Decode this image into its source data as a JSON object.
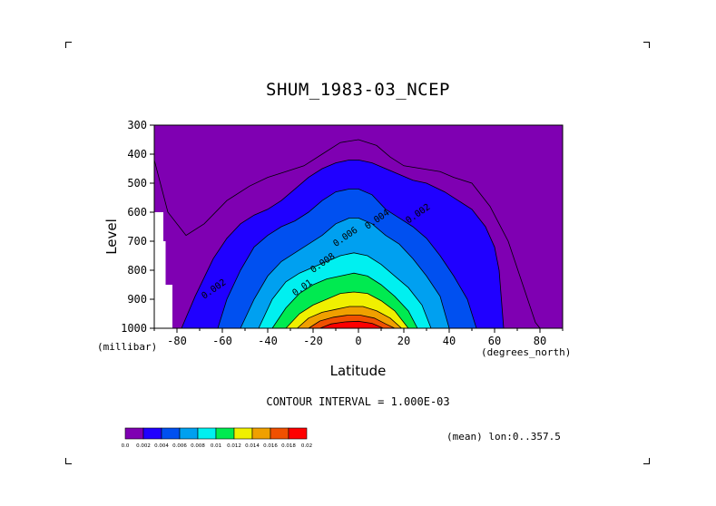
{
  "chart_data": {
    "type": "heatmap",
    "title": "SHUM_1983-03_NCEP",
    "xlabel": "Latitude",
    "xunits": "(degrees_north)",
    "ylabel": "Level",
    "yunits": "(millibar)",
    "xlim": [
      -90,
      90
    ],
    "ylim": [
      1000,
      300
    ],
    "x_ticks": [
      "-80",
      "-60",
      "-40",
      "-20",
      "0",
      "20",
      "40",
      "60",
      "80"
    ],
    "x_tick_values": [
      -80,
      -60,
      -40,
      -20,
      0,
      20,
      40,
      60,
      80
    ],
    "y_ticks": [
      "300",
      "400",
      "500",
      "600",
      "700",
      "800",
      "900",
      "1000"
    ],
    "y_tick_values": [
      300,
      400,
      500,
      600,
      700,
      800,
      900,
      1000
    ],
    "contour_interval_text": "CONTOUR INTERVAL = 1.000E-03",
    "contour_labels": [
      {
        "text": "0.002",
        "lat": 22,
        "level": 640
      },
      {
        "text": "0.004",
        "lat": 4,
        "level": 660
      },
      {
        "text": "0.006",
        "lat": -10,
        "level": 720
      },
      {
        "text": "0.008",
        "lat": -20,
        "level": 810
      },
      {
        "text": "0.01",
        "lat": -28,
        "level": 890
      },
      {
        "text": "0.002",
        "lat": -68,
        "level": 900
      }
    ],
    "colorbar": {
      "colors": [
        "#7f00b2",
        "#2000ff",
        "#0050f0",
        "#00a0f0",
        "#00f0f0",
        "#00ea50",
        "#f0f000",
        "#f0a000",
        "#f05000",
        "#ff0000"
      ],
      "labels": [
        "0.0",
        "0.002",
        "0.004",
        "0.006",
        "0.008",
        "0.01",
        "0.012",
        "0.014",
        "0.016",
        "0.018",
        "0.02"
      ]
    },
    "missing_color": "#ffffff",
    "grid": false,
    "mean_note": "(mean) lon:0..357.5"
  }
}
